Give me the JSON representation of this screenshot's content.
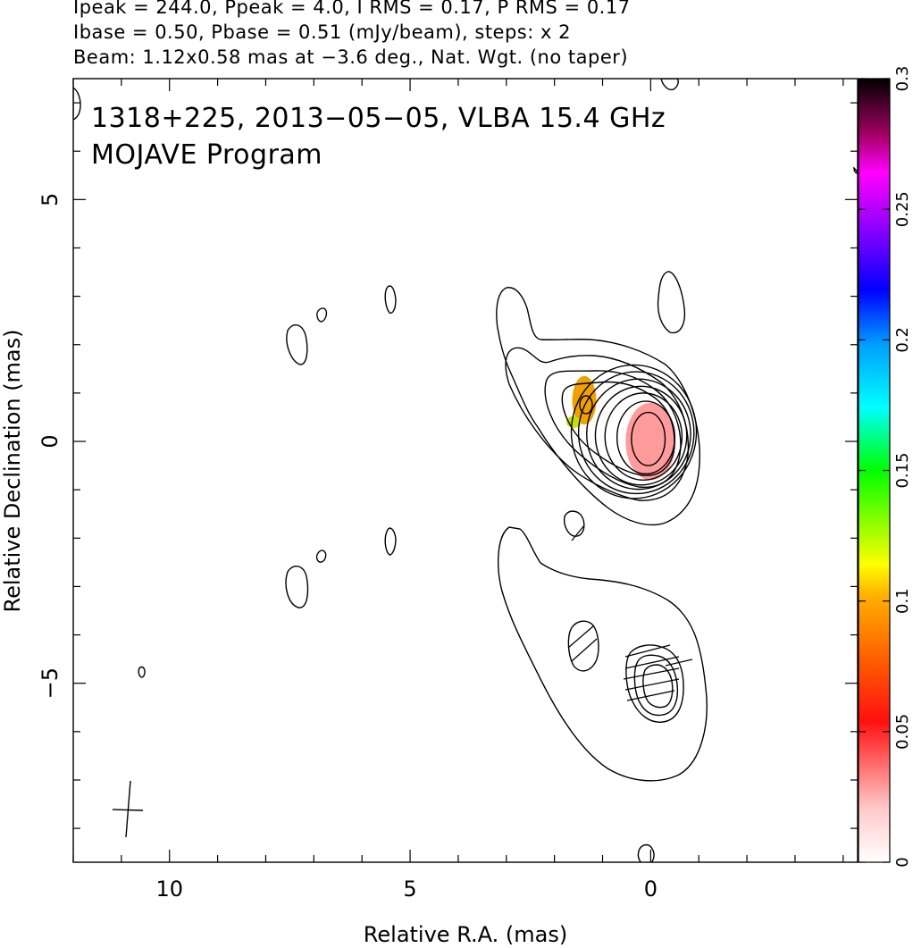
{
  "header": {
    "line1": "Ipeak = 244.0, Ppeak = 4.0, I RMS = 0.17, P RMS = 0.17",
    "line2": "Ibase = 0.50, Pbase = 0.51 (mJy/beam), steps: x 2",
    "line3": "Beam: 1.12x0.58 mas at −3.6 deg., Nat. Wgt. (no taper)"
  },
  "chart_data": {
    "type": "heatmap",
    "title": "1318+225, 2013−05−05, VLBA 15.4 GHz",
    "subtitle": "MOJAVE Program",
    "xlabel": "Relative R.A. (mas)",
    "ylabel": "Relative Declination (mas)",
    "xlim": [
      12.0,
      -4.3
    ],
    "ylim": [
      -8.7,
      7.5
    ],
    "x_inverted": true,
    "x_ticks": [
      10,
      5,
      0
    ],
    "x_tick_labels": [
      "10",
      "5",
      "0"
    ],
    "y_ticks": [
      5,
      0,
      -5
    ],
    "y_tick_labels": [
      "5",
      "0",
      "−5"
    ],
    "colorbar": {
      "range": [
        0,
        0.3
      ],
      "ticks": [
        0,
        0.05,
        0.1,
        0.15,
        0.2,
        0.25,
        0.3
      ],
      "tick_labels": [
        "0",
        "0.05",
        "0.1",
        "0.15",
        "0.2",
        "0.25",
        "0.3"
      ],
      "colors": [
        "#ffffff",
        "#ffc0c0",
        "#ff0000",
        "#ff8000",
        "#ffff00",
        "#00ff00",
        "#00ffff",
        "#0000ff",
        "#ff00ff",
        "#000000"
      ]
    },
    "beam": {
      "major_mas": 1.12,
      "minor_mas": 0.58,
      "pa_deg": -3.6
    },
    "core_contours": [
      {
        "cx": 0.05,
        "cy": 0.05,
        "rx": 0.35,
        "ry": 0.55
      },
      {
        "cx": 0.1,
        "cy": 0.08,
        "rx": 0.6,
        "ry": 0.75
      },
      {
        "cx": 0.15,
        "cy": 0.1,
        "rx": 0.8,
        "ry": 0.9
      },
      {
        "cx": 0.2,
        "cy": 0.12,
        "rx": 0.95,
        "ry": 1.02
      },
      {
        "cx": 0.25,
        "cy": 0.15,
        "rx": 1.08,
        "ry": 1.14
      },
      {
        "cx": 0.3,
        "cy": 0.18,
        "rx": 1.2,
        "ry": 1.26
      },
      {
        "cx": 0.35,
        "cy": 0.2,
        "rx": 1.3,
        "ry": 1.38
      }
    ],
    "polarization_patches": [
      {
        "x": 0.0,
        "y": 0.0,
        "rx": 0.52,
        "ry": 0.8,
        "value": 0.03
      },
      {
        "x": 1.38,
        "y": 0.85,
        "rx": 0.25,
        "ry": 0.5,
        "value": 0.085
      },
      {
        "x": 1.6,
        "y": 0.4,
        "rx": 0.15,
        "ry": 0.12,
        "value": 0.13
      }
    ]
  }
}
